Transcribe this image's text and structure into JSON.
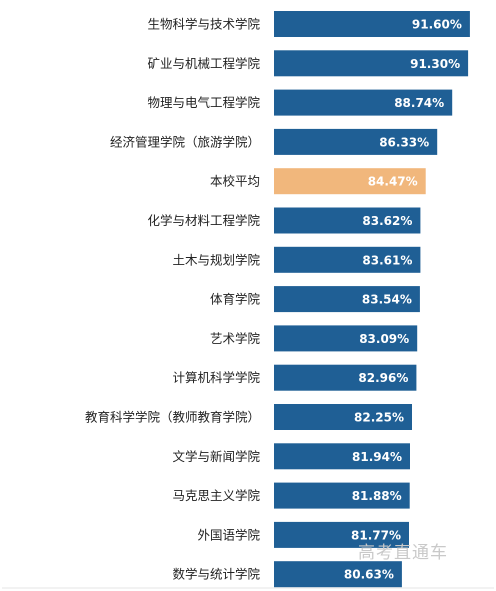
{
  "chart_data": {
    "type": "bar",
    "orientation": "horizontal",
    "categories": [
      "生物科学与技术学院",
      "矿业与机械工程学院",
      "物理与电气工程学院",
      "经济管理学院（旅游学院）",
      "本校平均",
      "化学与材料工程学院",
      "土木与规划学院",
      "体育学院",
      "艺术学院",
      "计算机科学学院",
      "教育科学学院（教师教育学院）",
      "文学与新闻学院",
      "马克思主义学院",
      "外国语学院",
      "数学与统计学院"
    ],
    "values": [
      91.6,
      91.3,
      88.74,
      86.33,
      84.47,
      83.62,
      83.61,
      83.54,
      83.09,
      82.96,
      82.25,
      81.94,
      81.88,
      81.77,
      80.63
    ],
    "value_labels": [
      "91.60%",
      "91.30%",
      "88.74%",
      "86.33%",
      "84.47%",
      "83.62%",
      "83.61%",
      "83.54%",
      "83.09%",
      "82.96%",
      "82.25%",
      "81.94%",
      "81.88%",
      "81.77%",
      "80.63%"
    ],
    "highlight_category": "本校平均",
    "colors": {
      "bar": "#1f5f95",
      "highlight": "#f1b77c",
      "highlight_text": "#ffffff"
    },
    "xlim": [
      60,
      93
    ],
    "grid": false,
    "legend": "none"
  },
  "watermark": "高考直通车"
}
